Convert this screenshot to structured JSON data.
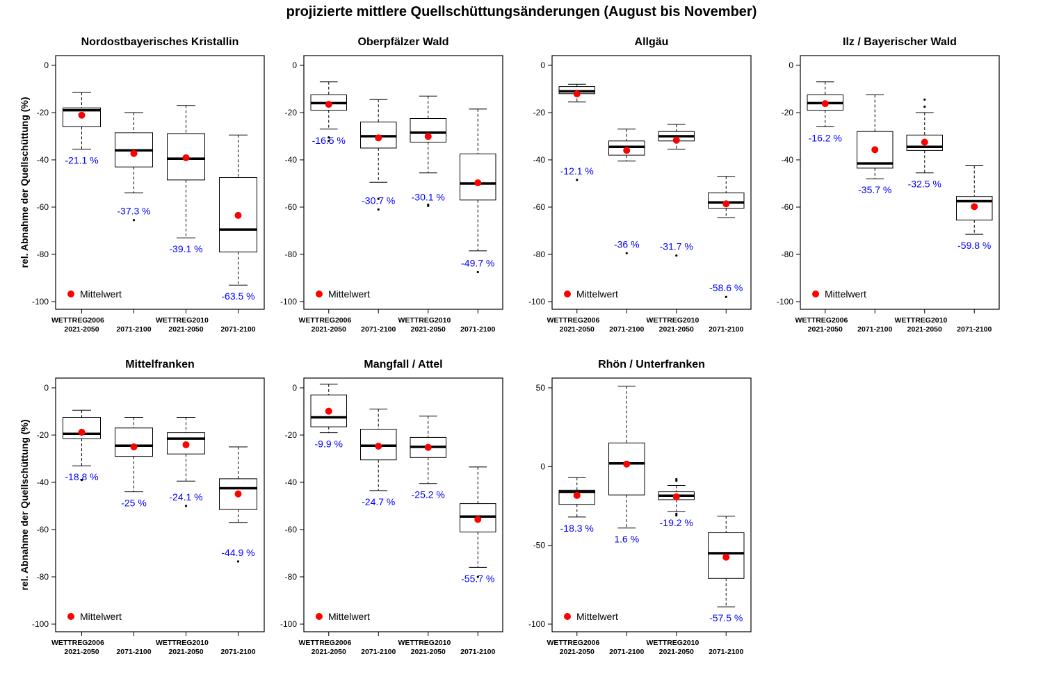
{
  "title": "projizierte mittlere Quellschüttungsänderungen (August bis November)",
  "ylabel": "rel. Abnahme der Quellschüttung (%)",
  "legend_label": "Mittelwert",
  "colors": {
    "mean": "#ff0000",
    "mean_label": "#0000ff",
    "box": "#000000"
  },
  "x_labels_top": [
    "WETTREG2006",
    "",
    "WETTREG2010",
    ""
  ],
  "x_labels_bottom": [
    "2021-2050",
    "2071-2100",
    "2021-2050",
    "2071-2100"
  ],
  "chart_data": [
    {
      "type": "box",
      "title": "Nordostbayerisches Kristallin",
      "ylim": [
        -100,
        0
      ],
      "yticks": [
        0,
        -20,
        -40,
        -60,
        -80,
        -100
      ],
      "boxes": [
        {
          "whisker_low": -35.5,
          "q1": -26,
          "median": -19,
          "q3": -18,
          "whisker_high": -11.5,
          "outliers": [],
          "mean": -21.1,
          "mean_label": "-21.1 %"
        },
        {
          "whisker_low": -54,
          "q1": -43,
          "median": -36,
          "q3": -28.5,
          "whisker_high": -20,
          "outliers": [
            -65.5
          ],
          "mean": -37.3,
          "mean_label": "-37.3 %"
        },
        {
          "whisker_low": -73,
          "q1": -48.5,
          "median": -39.5,
          "q3": -29,
          "whisker_high": -17,
          "outliers": [],
          "mean": -39.1,
          "mean_label": "-39.1 %"
        },
        {
          "whisker_low": -93,
          "q1": -79,
          "median": -69.5,
          "q3": -47.5,
          "whisker_high": -29.5,
          "outliers": [],
          "mean": -63.5,
          "mean_label": "-63.5 %"
        }
      ]
    },
    {
      "type": "box",
      "title": "Oberpfälzer Wald",
      "ylim": [
        -100,
        0
      ],
      "yticks": [
        0,
        -20,
        -40,
        -60,
        -80,
        -100
      ],
      "boxes": [
        {
          "whisker_low": -27,
          "q1": -19,
          "median": -16,
          "q3": -12.5,
          "whisker_high": -7,
          "outliers": [
            -30.5,
            -32
          ],
          "mean": -16.5,
          "mean_label": "-16.5 %"
        },
        {
          "whisker_low": -49.5,
          "q1": -35,
          "median": -30,
          "q3": -24,
          "whisker_high": -14.5,
          "outliers": [
            -56.5,
            -61
          ],
          "mean": -30.7,
          "mean_label": "-30.7 %"
        },
        {
          "whisker_low": -45.5,
          "q1": -32.5,
          "median": -28.5,
          "q3": -22.5,
          "whisker_high": -13,
          "outliers": [
            -59,
            -59.5
          ],
          "mean": -30.1,
          "mean_label": "-30.1 %"
        },
        {
          "whisker_low": -78.5,
          "q1": -57,
          "median": -50,
          "q3": -37.5,
          "whisker_high": -18.5,
          "outliers": [
            -87.5
          ],
          "mean": -49.7,
          "mean_label": "-49.7 %"
        }
      ]
    },
    {
      "type": "box",
      "title": "Allgäu",
      "ylim": [
        -100,
        0
      ],
      "yticks": [
        0,
        -20,
        -40,
        -60,
        -80,
        -100
      ],
      "boxes": [
        {
          "whisker_low": -15.5,
          "q1": -12,
          "median": -11,
          "q3": -9,
          "whisker_high": -8,
          "outliers": [
            -48.5
          ],
          "mean": -12.1,
          "mean_label": "-12.1 %"
        },
        {
          "whisker_low": -40.5,
          "q1": -38,
          "median": -34.5,
          "q3": -32,
          "whisker_high": -27,
          "outliers": [
            -79.5
          ],
          "mean": -36,
          "mean_label": "-36 %"
        },
        {
          "whisker_low": -35.5,
          "q1": -32,
          "median": -30,
          "q3": -28,
          "whisker_high": -25,
          "outliers": [
            -80.5
          ],
          "mean": -31.7,
          "mean_label": "-31.7 %"
        },
        {
          "whisker_low": -64.5,
          "q1": -60.5,
          "median": -58,
          "q3": -54,
          "whisker_high": -47,
          "outliers": [
            -98
          ],
          "mean": -58.6,
          "mean_label": "-58.6 %"
        }
      ]
    },
    {
      "type": "box",
      "title": "Ilz / Bayerischer Wald",
      "ylim": [
        -100,
        0
      ],
      "yticks": [
        0,
        -20,
        -40,
        -60,
        -80,
        -100
      ],
      "boxes": [
        {
          "whisker_low": -26,
          "q1": -19,
          "median": -16,
          "q3": -12.5,
          "whisker_high": -7,
          "outliers": [],
          "mean": -16.2,
          "mean_label": "-16.2 %"
        },
        {
          "whisker_low": -48,
          "q1": -43.5,
          "median": -41.5,
          "q3": -28,
          "whisker_high": -12.5,
          "outliers": [],
          "mean": -35.7,
          "mean_label": "-35.7 %"
        },
        {
          "whisker_low": -45.5,
          "q1": -36,
          "median": -34.5,
          "q3": -29.5,
          "whisker_high": -20,
          "outliers": [
            -14.5,
            -17.5
          ],
          "mean": -32.5,
          "mean_label": "-32.5 %"
        },
        {
          "whisker_low": -71.5,
          "q1": -65.5,
          "median": -57.5,
          "q3": -55.5,
          "whisker_high": -42.5,
          "outliers": [],
          "mean": -59.8,
          "mean_label": "-59.8 %"
        }
      ]
    },
    {
      "type": "box",
      "title": "Mittelfranken",
      "ylim": [
        -100,
        0
      ],
      "yticks": [
        0,
        -20,
        -40,
        -60,
        -80,
        -100
      ],
      "boxes": [
        {
          "whisker_low": -33,
          "q1": -21.5,
          "median": -19.5,
          "q3": -12.5,
          "whisker_high": -9.5,
          "outliers": [
            -39
          ],
          "mean": -18.8,
          "mean_label": "-18.8 %"
        },
        {
          "whisker_low": -44,
          "q1": -29,
          "median": -24.5,
          "q3": -17,
          "whisker_high": -12.5,
          "outliers": [],
          "mean": -25,
          "mean_label": "-25 %"
        },
        {
          "whisker_low": -39.5,
          "q1": -28,
          "median": -21.5,
          "q3": -19,
          "whisker_high": -12.5,
          "outliers": [
            -50
          ],
          "mean": -24.1,
          "mean_label": "-24.1 %"
        },
        {
          "whisker_low": -57,
          "q1": -51.5,
          "median": -42.5,
          "q3": -38.5,
          "whisker_high": -25,
          "outliers": [
            -73.5
          ],
          "mean": -44.9,
          "mean_label": "-44.9 %"
        }
      ]
    },
    {
      "type": "box",
      "title": "Mangfall / Attel",
      "ylim": [
        -100,
        0
      ],
      "yticks": [
        0,
        -20,
        -40,
        -60,
        -80,
        -100
      ],
      "boxes": [
        {
          "whisker_low": -19,
          "q1": -16.5,
          "median": -12.5,
          "q3": -3,
          "whisker_high": 1.5,
          "outliers": [],
          "mean": -9.9,
          "mean_label": "-9.9 %"
        },
        {
          "whisker_low": -43.5,
          "q1": -30.5,
          "median": -24.5,
          "q3": -17.5,
          "whisker_high": -9,
          "outliers": [],
          "mean": -24.7,
          "mean_label": "-24.7 %"
        },
        {
          "whisker_low": -40.5,
          "q1": -29.5,
          "median": -25,
          "q3": -21,
          "whisker_high": -12,
          "outliers": [],
          "mean": -25.2,
          "mean_label": "-25.2 %"
        },
        {
          "whisker_low": -76,
          "q1": -61,
          "median": -54.5,
          "q3": -49,
          "whisker_high": -33.5,
          "outliers": [
            -80
          ],
          "mean": -55.7,
          "mean_label": "-55.7 %"
        }
      ]
    },
    {
      "type": "box",
      "title": "Rhön / Unterfranken",
      "ylim": [
        -105,
        55
      ],
      "yticks": [
        50,
        0,
        -50,
        -100
      ],
      "boxes": [
        {
          "whisker_low": -32,
          "q1": -24,
          "median": -16,
          "q3": -15,
          "whisker_high": -7,
          "outliers": [],
          "mean": -18.3,
          "mean_label": "-18.3 %"
        },
        {
          "whisker_low": -39,
          "q1": -18,
          "median": 2,
          "q3": 15,
          "whisker_high": 51,
          "outliers": [],
          "mean": 1.6,
          "mean_label": "1.6 %"
        },
        {
          "whisker_low": -28.5,
          "q1": -21,
          "median": -18.5,
          "q3": -16,
          "whisker_high": -12,
          "outliers": [
            -8,
            -9,
            -30,
            -31
          ],
          "mean": -19.2,
          "mean_label": "-19.2 %"
        },
        {
          "whisker_low": -89,
          "q1": -71,
          "median": -55,
          "q3": -42,
          "whisker_high": -31.5,
          "outliers": [],
          "mean": -57.5,
          "mean_label": "-57.5 %"
        }
      ]
    }
  ]
}
